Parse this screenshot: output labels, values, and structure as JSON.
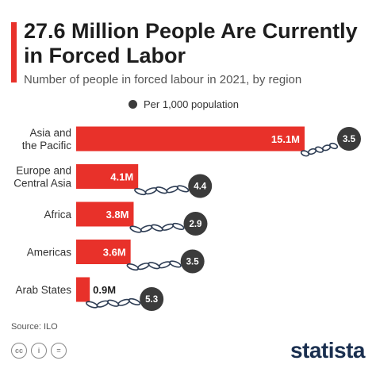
{
  "header": {
    "title": "27.6 Million People Are Currently in Forced Labor",
    "subtitle": "Number of people in forced labour in 2021, by region"
  },
  "legend": {
    "label": "Per 1,000 population"
  },
  "chart_data": {
    "type": "bar",
    "orientation": "horizontal",
    "title": "27.6 Million People Are Currently in Forced Labor",
    "subtitle": "Number of people in forced labour in 2021, by region",
    "categories": [
      "Asia and the Pacific",
      "Europe and Central Asia",
      "Africa",
      "Americas",
      "Arab States"
    ],
    "category_lines": [
      [
        "Asia and",
        "the Pacific"
      ],
      [
        "Europe and",
        "Central Asia"
      ],
      [
        "Africa"
      ],
      [
        "Americas"
      ],
      [
        "Arab States"
      ]
    ],
    "values": [
      15.1,
      4.1,
      3.8,
      3.6,
      0.9
    ],
    "value_labels": [
      "15.1M",
      "4.1M",
      "3.8M",
      "3.6M",
      "0.9M"
    ],
    "unit": "million people",
    "secondary_series": {
      "name": "Per 1,000 population",
      "values": [
        3.5,
        4.4,
        2.9,
        3.5,
        5.3
      ],
      "labels": [
        "3.5",
        "4.4",
        "2.9",
        "3.5",
        "5.3"
      ]
    },
    "xlim": [
      0,
      15.1
    ],
    "grid": false,
    "legend_position": "top"
  },
  "footer": {
    "source": "Source: ILO",
    "logo": "statista",
    "cc_icons": [
      "cc",
      "i",
      "="
    ]
  },
  "colors": {
    "bar": "#e8312a",
    "circle": "#3b3b3b",
    "chain": "#2f3e55",
    "title": "#1e1e1e",
    "logo": "#1a2f4f"
  }
}
